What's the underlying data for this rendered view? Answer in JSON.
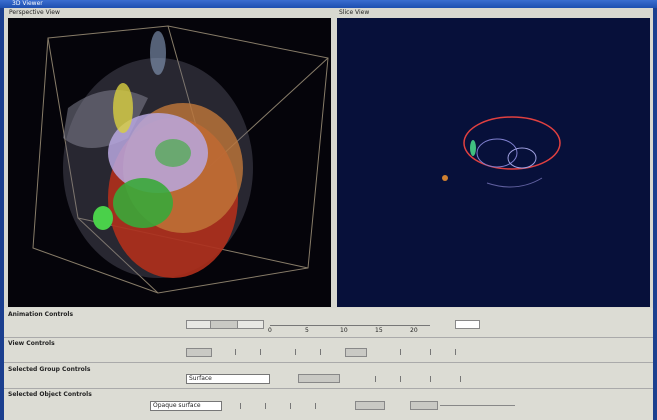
{
  "window": {
    "title": "3D Viewer"
  },
  "views": [
    {
      "label": "Perspective View"
    },
    {
      "label": "Slice View"
    }
  ],
  "animation": {
    "label": "Animation Controls",
    "ticks": [
      "0",
      "5",
      "10",
      "15",
      "20"
    ]
  },
  "view_controls": {
    "label": "View Controls"
  },
  "group_controls": {
    "label": "Selected Group Controls",
    "dropdown": "Surface"
  },
  "object_controls": {
    "label": "Selected Object Controls",
    "dropdown": "Opaque surface"
  }
}
